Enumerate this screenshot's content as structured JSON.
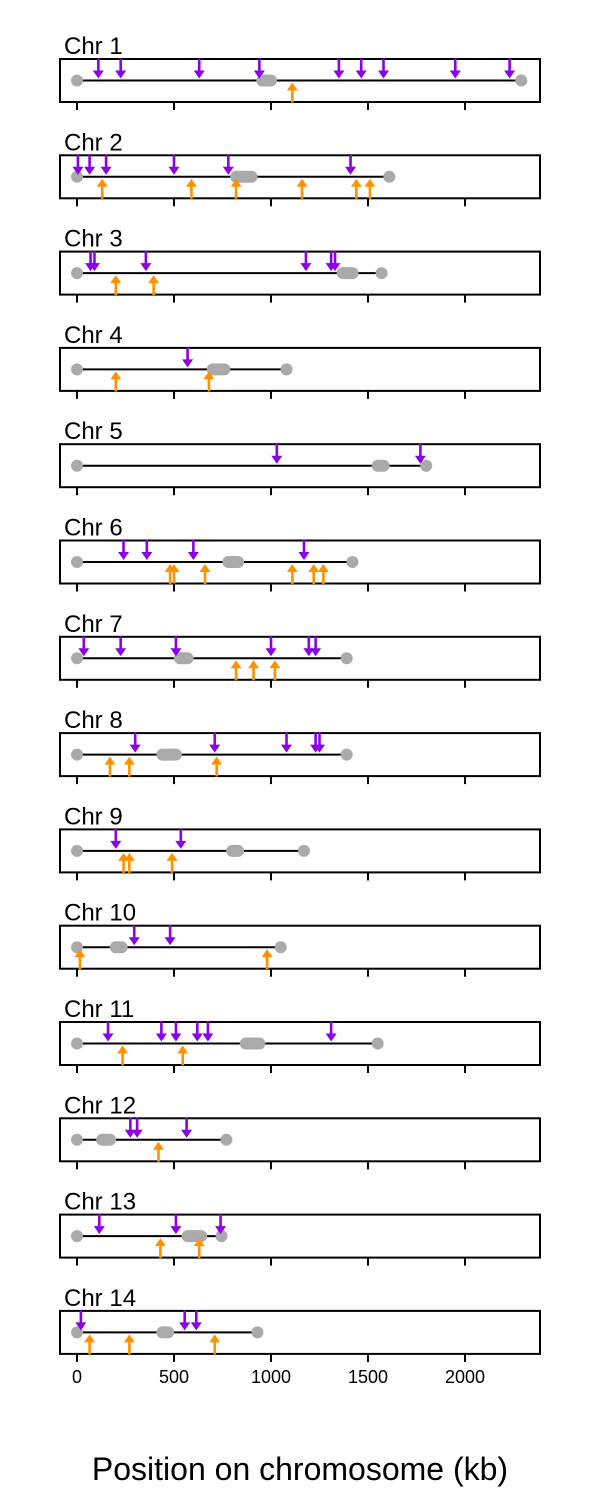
{
  "chart_data": {
    "type": "scatter",
    "xlabel": "Position on chromosome (kb)",
    "xlim": [
      0,
      2400
    ],
    "xticks": [
      0,
      500,
      1000,
      1500,
      2000
    ],
    "xtick_labels": [
      "0",
      "500",
      "1000",
      "1500",
      "2000"
    ],
    "colors": {
      "line": "#000000",
      "gray": "#aaaaaa",
      "purple": "#8a00e8",
      "orange": "#ff9100"
    },
    "chromosomes": [
      {
        "name": "Chr 1",
        "length": 2290,
        "centromere": [
          955,
          1000
        ],
        "down": [
          110,
          225,
          630,
          940,
          1350,
          1465,
          1580,
          1950,
          2230
        ],
        "up": [
          1110
        ]
      },
      {
        "name": "Chr 2",
        "length": 1610,
        "centromere": [
          820,
          900
        ],
        "down": [
          5,
          65,
          150,
          500,
          780,
          1410
        ],
        "up": [
          130,
          590,
          820,
          1160,
          1440,
          1510
        ]
      },
      {
        "name": "Chr 3",
        "length": 1570,
        "centromere": [
          1370,
          1420
        ],
        "down": [
          70,
          90,
          355,
          1180,
          1310,
          1330
        ],
        "up": [
          200,
          395
        ]
      },
      {
        "name": "Chr 4",
        "length": 1080,
        "centromere": [
          700,
          760
        ],
        "down": [
          570
        ],
        "up": [
          200,
          680
        ]
      },
      {
        "name": "Chr 5",
        "length": 1800,
        "centromere": [
          1550,
          1580
        ],
        "down": [
          1030,
          1770
        ],
        "up": []
      },
      {
        "name": "Chr 6",
        "length": 1420,
        "centromere": [
          780,
          830
        ],
        "down": [
          240,
          360,
          600,
          1170
        ],
        "up": [
          480,
          500,
          660,
          1110,
          1220,
          1270
        ]
      },
      {
        "name": "Chr 7",
        "length": 1390,
        "centromere": [
          530,
          570
        ],
        "down": [
          35,
          225,
          510,
          1000,
          1195,
          1230
        ],
        "up": [
          820,
          910,
          1020
        ]
      },
      {
        "name": "Chr 8",
        "length": 1390,
        "centromere": [
          440,
          510
        ],
        "down": [
          300,
          710,
          1080,
          1230,
          1250
        ],
        "up": [
          170,
          270,
          720
        ]
      },
      {
        "name": "Chr 9",
        "length": 1170,
        "centromere": [
          800,
          830
        ],
        "down": [
          200,
          535
        ],
        "up": [
          240,
          270,
          490
        ]
      },
      {
        "name": "Chr 10",
        "length": 1050,
        "centromere": [
          200,
          230
        ],
        "down": [
          295,
          480
        ],
        "up": [
          15,
          980
        ]
      },
      {
        "name": "Chr 11",
        "length": 1550,
        "centromere": [
          870,
          940
        ],
        "down": [
          160,
          435,
          510,
          620,
          675,
          1310
        ],
        "up": [
          235,
          545
        ]
      },
      {
        "name": "Chr 12",
        "length": 770,
        "centromere": [
          130,
          170
        ],
        "down": [
          275,
          310,
          565
        ],
        "up": [
          420
        ]
      },
      {
        "name": "Chr 13",
        "length": 745,
        "centromere": [
          570,
          640
        ],
        "down": [
          115,
          510,
          740
        ],
        "up": [
          430,
          630
        ]
      },
      {
        "name": "Chr 14",
        "length": 930,
        "centromere": [
          440,
          470
        ],
        "down": [
          20,
          555,
          615
        ],
        "up": [
          65,
          270,
          710
        ]
      }
    ]
  }
}
